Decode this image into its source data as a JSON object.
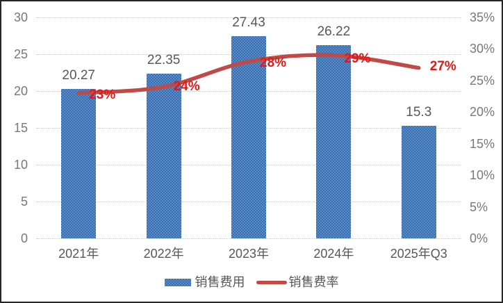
{
  "chart_data": {
    "type": "bar",
    "subtype": "combo-bar-line",
    "title": "",
    "categories": [
      "2021年",
      "2022年",
      "2023年",
      "2024年",
      "2025年Q3"
    ],
    "series": [
      {
        "name": "销售费用",
        "chart": "bar",
        "axis": "left",
        "values": [
          20.27,
          22.35,
          27.43,
          26.22,
          15.3
        ],
        "data_labels": [
          "20.27",
          "22.35",
          "27.43",
          "26.22",
          "15.3"
        ]
      },
      {
        "name": "销售费率",
        "chart": "line",
        "axis": "right",
        "values": [
          23,
          24,
          28,
          29,
          27
        ],
        "data_labels": [
          "23%",
          "24%",
          "28%",
          "29%",
          "27%"
        ]
      }
    ],
    "left_axis": {
      "min": 0,
      "max": 30,
      "step": 5,
      "tick_labels": [
        "0",
        "5",
        "10",
        "15",
        "20",
        "25",
        "30"
      ]
    },
    "right_axis": {
      "min": 0,
      "max": 35,
      "step": 5,
      "tick_labels": [
        "0%",
        "5%",
        "10%",
        "15%",
        "20%",
        "25%",
        "30%",
        "35%"
      ]
    },
    "gridlines": "horizontal-dotted",
    "legend_position": "bottom"
  },
  "legend": {
    "items": [
      {
        "label": "销售费用",
        "swatch": "bar"
      },
      {
        "label": "销售费率",
        "swatch": "line"
      }
    ]
  },
  "colors": {
    "bar": "#4d7fbc",
    "line": "#c04a45",
    "line_label": "#e51717",
    "axis_text": "#787878",
    "data_label_text": "#575757",
    "grid": "#c8c8c8",
    "frame": "#262626",
    "background": "#ffffff"
  }
}
